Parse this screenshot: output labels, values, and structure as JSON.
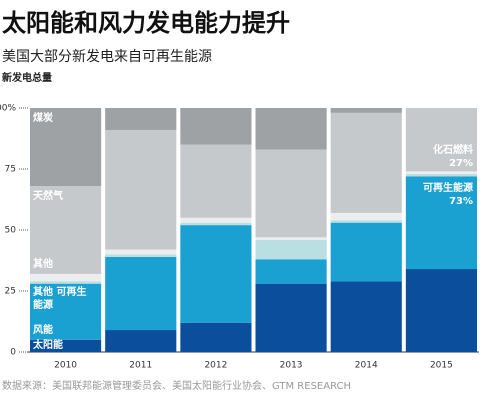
{
  "chart_data": {
    "type": "bar",
    "stacked": true,
    "title": "太阳能和风力发电能力提升",
    "subtitle": "美国大部分新发电来自可再生能源",
    "ylabel": "新发电总量",
    "source": "数据来源：美国联邦能源管理委员会、美国太阳能行业协会、GTM RESEARCH",
    "categories": [
      "2010",
      "2011",
      "2012",
      "2013",
      "2014",
      "2015"
    ],
    "ylim": [
      0,
      100
    ],
    "yticks": [
      0,
      25,
      50,
      75,
      {
        "value": 100,
        "label": "100%"
      }
    ],
    "series": [
      {
        "name": "太阳能",
        "color": "#0b4f9c",
        "values": [
          5,
          9,
          12,
          28,
          29,
          34
        ]
      },
      {
        "name": "风能",
        "color": "#1ba0d2",
        "values": [
          23,
          30,
          40,
          10,
          24,
          38
        ]
      },
      {
        "name": "其他 可再生能源",
        "color": "#b9dfe2",
        "values": [
          1,
          1,
          1,
          8,
          1,
          1
        ]
      },
      {
        "name": "其他",
        "color": "#eceeee",
        "values": [
          3,
          2,
          2,
          1,
          3,
          1
        ]
      },
      {
        "name": "天然气",
        "color": "#c6c9cb",
        "values": [
          36,
          49,
          30,
          36,
          41,
          26
        ]
      },
      {
        "name": "煤炭",
        "color": "#9ea2a5",
        "values": [
          32,
          9,
          15,
          17,
          2,
          0
        ]
      }
    ],
    "annotations": [
      {
        "text": "化石燃料",
        "value": "27%"
      },
      {
        "text": "可再生能源",
        "value": "73%"
      }
    ]
  }
}
